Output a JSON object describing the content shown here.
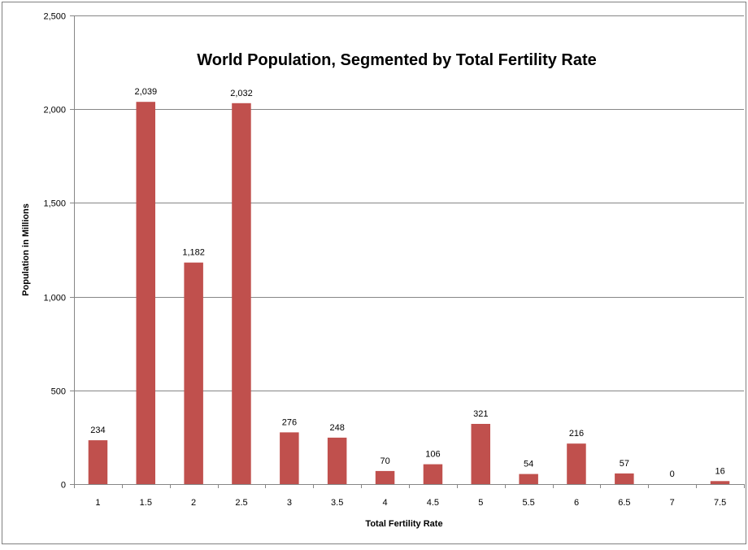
{
  "chart_data": {
    "type": "bar",
    "title": "World Population, Segmented by Total Fertility Rate",
    "xlabel": "Total Fertility Rate",
    "ylabel": "Population in Millions",
    "categories": [
      "1",
      "1.5",
      "2",
      "2.5",
      "3",
      "3.5",
      "4",
      "4.5",
      "5",
      "5.5",
      "6",
      "6.5",
      "7",
      "7.5"
    ],
    "values": [
      234,
      2039,
      1182,
      2032,
      276,
      248,
      70,
      106,
      321,
      54,
      216,
      57,
      0,
      16
    ],
    "data_labels": [
      "234",
      "2,039",
      "1,182",
      "2,032",
      "276",
      "248",
      "70",
      "106",
      "321",
      "54",
      "216",
      "57",
      "0",
      "16"
    ],
    "ylim": [
      0,
      2500
    ],
    "yticks": [
      0,
      500,
      1000,
      1500,
      2000,
      2500
    ],
    "ytick_labels": [
      "0",
      "500",
      "1,000",
      "1,500",
      "2,000",
      "2,500"
    ],
    "grid": true,
    "bar_color": "#c0504d",
    "grid_color": "#868686"
  }
}
